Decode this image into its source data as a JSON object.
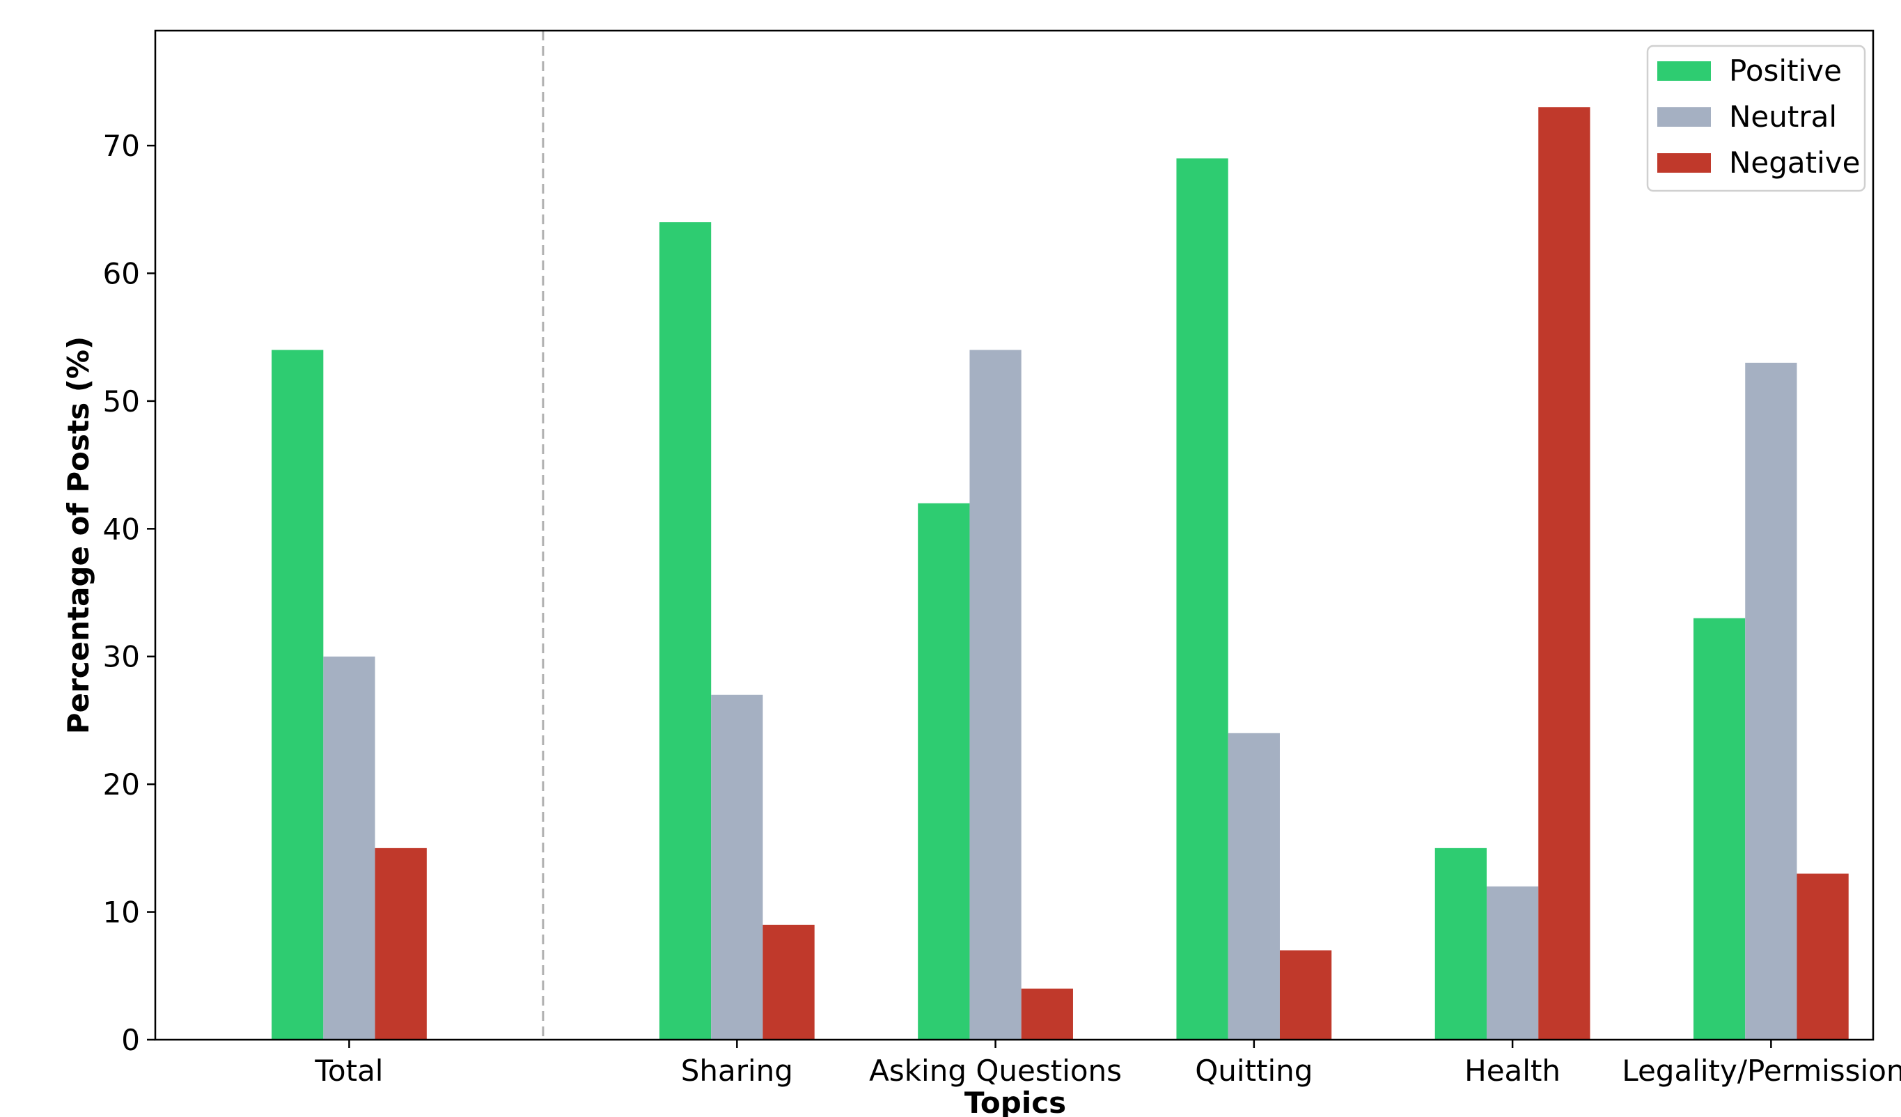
{
  "chart_data": {
    "type": "bar",
    "title": "",
    "xlabel": "Topics",
    "ylabel": "Percentage of Posts (%)",
    "categories": [
      "Total",
      "Sharing",
      "Asking Questions",
      "Quitting",
      "Health",
      "Legality/Permissions"
    ],
    "series": [
      {
        "name": "Positive",
        "color": "#2ecc71",
        "values": [
          54,
          64,
          42,
          69,
          15,
          33
        ]
      },
      {
        "name": "Neutral",
        "color": "#a5b0c2",
        "values": [
          30,
          27,
          54,
          24,
          12,
          53
        ]
      },
      {
        "name": "Negative",
        "color": "#c0392b",
        "values": [
          15,
          9,
          4,
          7,
          73,
          13
        ]
      }
    ],
    "ylim": [
      0,
      79
    ],
    "yticks": [
      0,
      10,
      20,
      30,
      40,
      50,
      60,
      70
    ],
    "grid": false,
    "legend_position": "top-right",
    "separator_after_category": "Total"
  }
}
